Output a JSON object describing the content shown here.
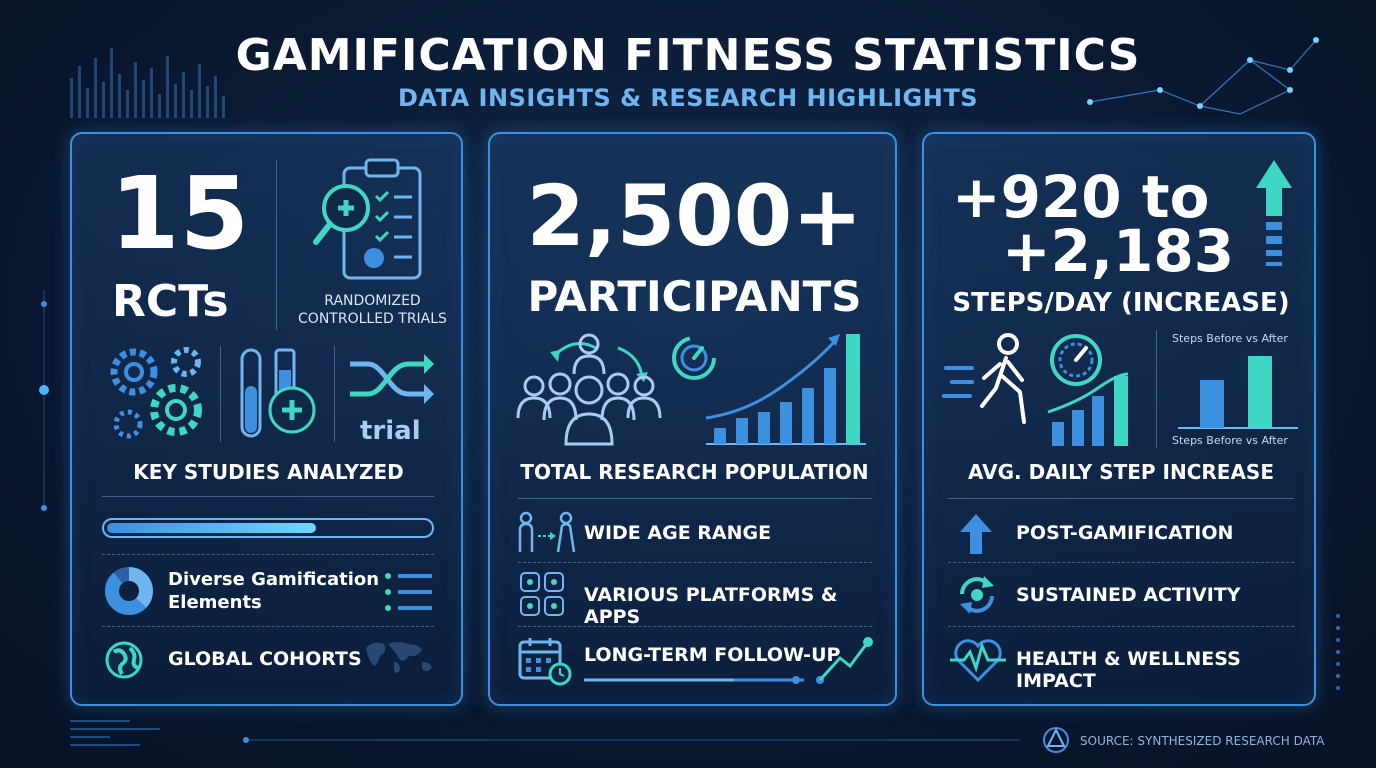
{
  "header": {
    "title": "GAMIFICATION FITNESS STATISTICS",
    "subtitle": "DATA INSIGHTS & RESEARCH HIGHLIGHTS"
  },
  "panel1": {
    "big_number": "15",
    "big_unit": "RCTs",
    "trials_label_1": "RANDOMIZED",
    "trials_label_2": "CONTROLLED TRIALS",
    "trial_word": "trial",
    "caption": "KEY STUDIES ANALYZED",
    "progress": 0.65,
    "items": [
      {
        "label_1": "Diverse Gamification",
        "label_2": "Elements"
      },
      {
        "label_1": "GLOBAL COHORTS"
      }
    ]
  },
  "panel2": {
    "big_number": "2,500+",
    "big_unit": "PARTICIPANTS",
    "caption": "TOTAL RESEARCH POPULATION",
    "items": [
      {
        "label": "WIDE AGE RANGE"
      },
      {
        "label": "VARIOUS PLATFORMS & APPS"
      },
      {
        "label": "LONG-TERM FOLLOW-UP"
      }
    ]
  },
  "panel3": {
    "big_line_1": "+920 to",
    "big_line_2": "+2,183",
    "big_unit": "STEPS/DAY (INCREASE)",
    "chart_label_top": "Steps Before vs After",
    "chart_label_bottom": "Steps Before vs After",
    "caption": "AVG. DAILY STEP INCREASE",
    "items": [
      {
        "label": "POST-GAMIFICATION"
      },
      {
        "label": "SUSTAINED ACTIVITY"
      },
      {
        "label": "HEALTH & WELLNESS IMPACT"
      }
    ]
  },
  "footer": {
    "source": "SOURCE: SYNTHESIZED RESEARCH DATA"
  },
  "colors": {
    "accent_blue": "#3d8fe0",
    "accent_teal": "#3fd6c4",
    "light_blue": "#6fb6f0"
  }
}
